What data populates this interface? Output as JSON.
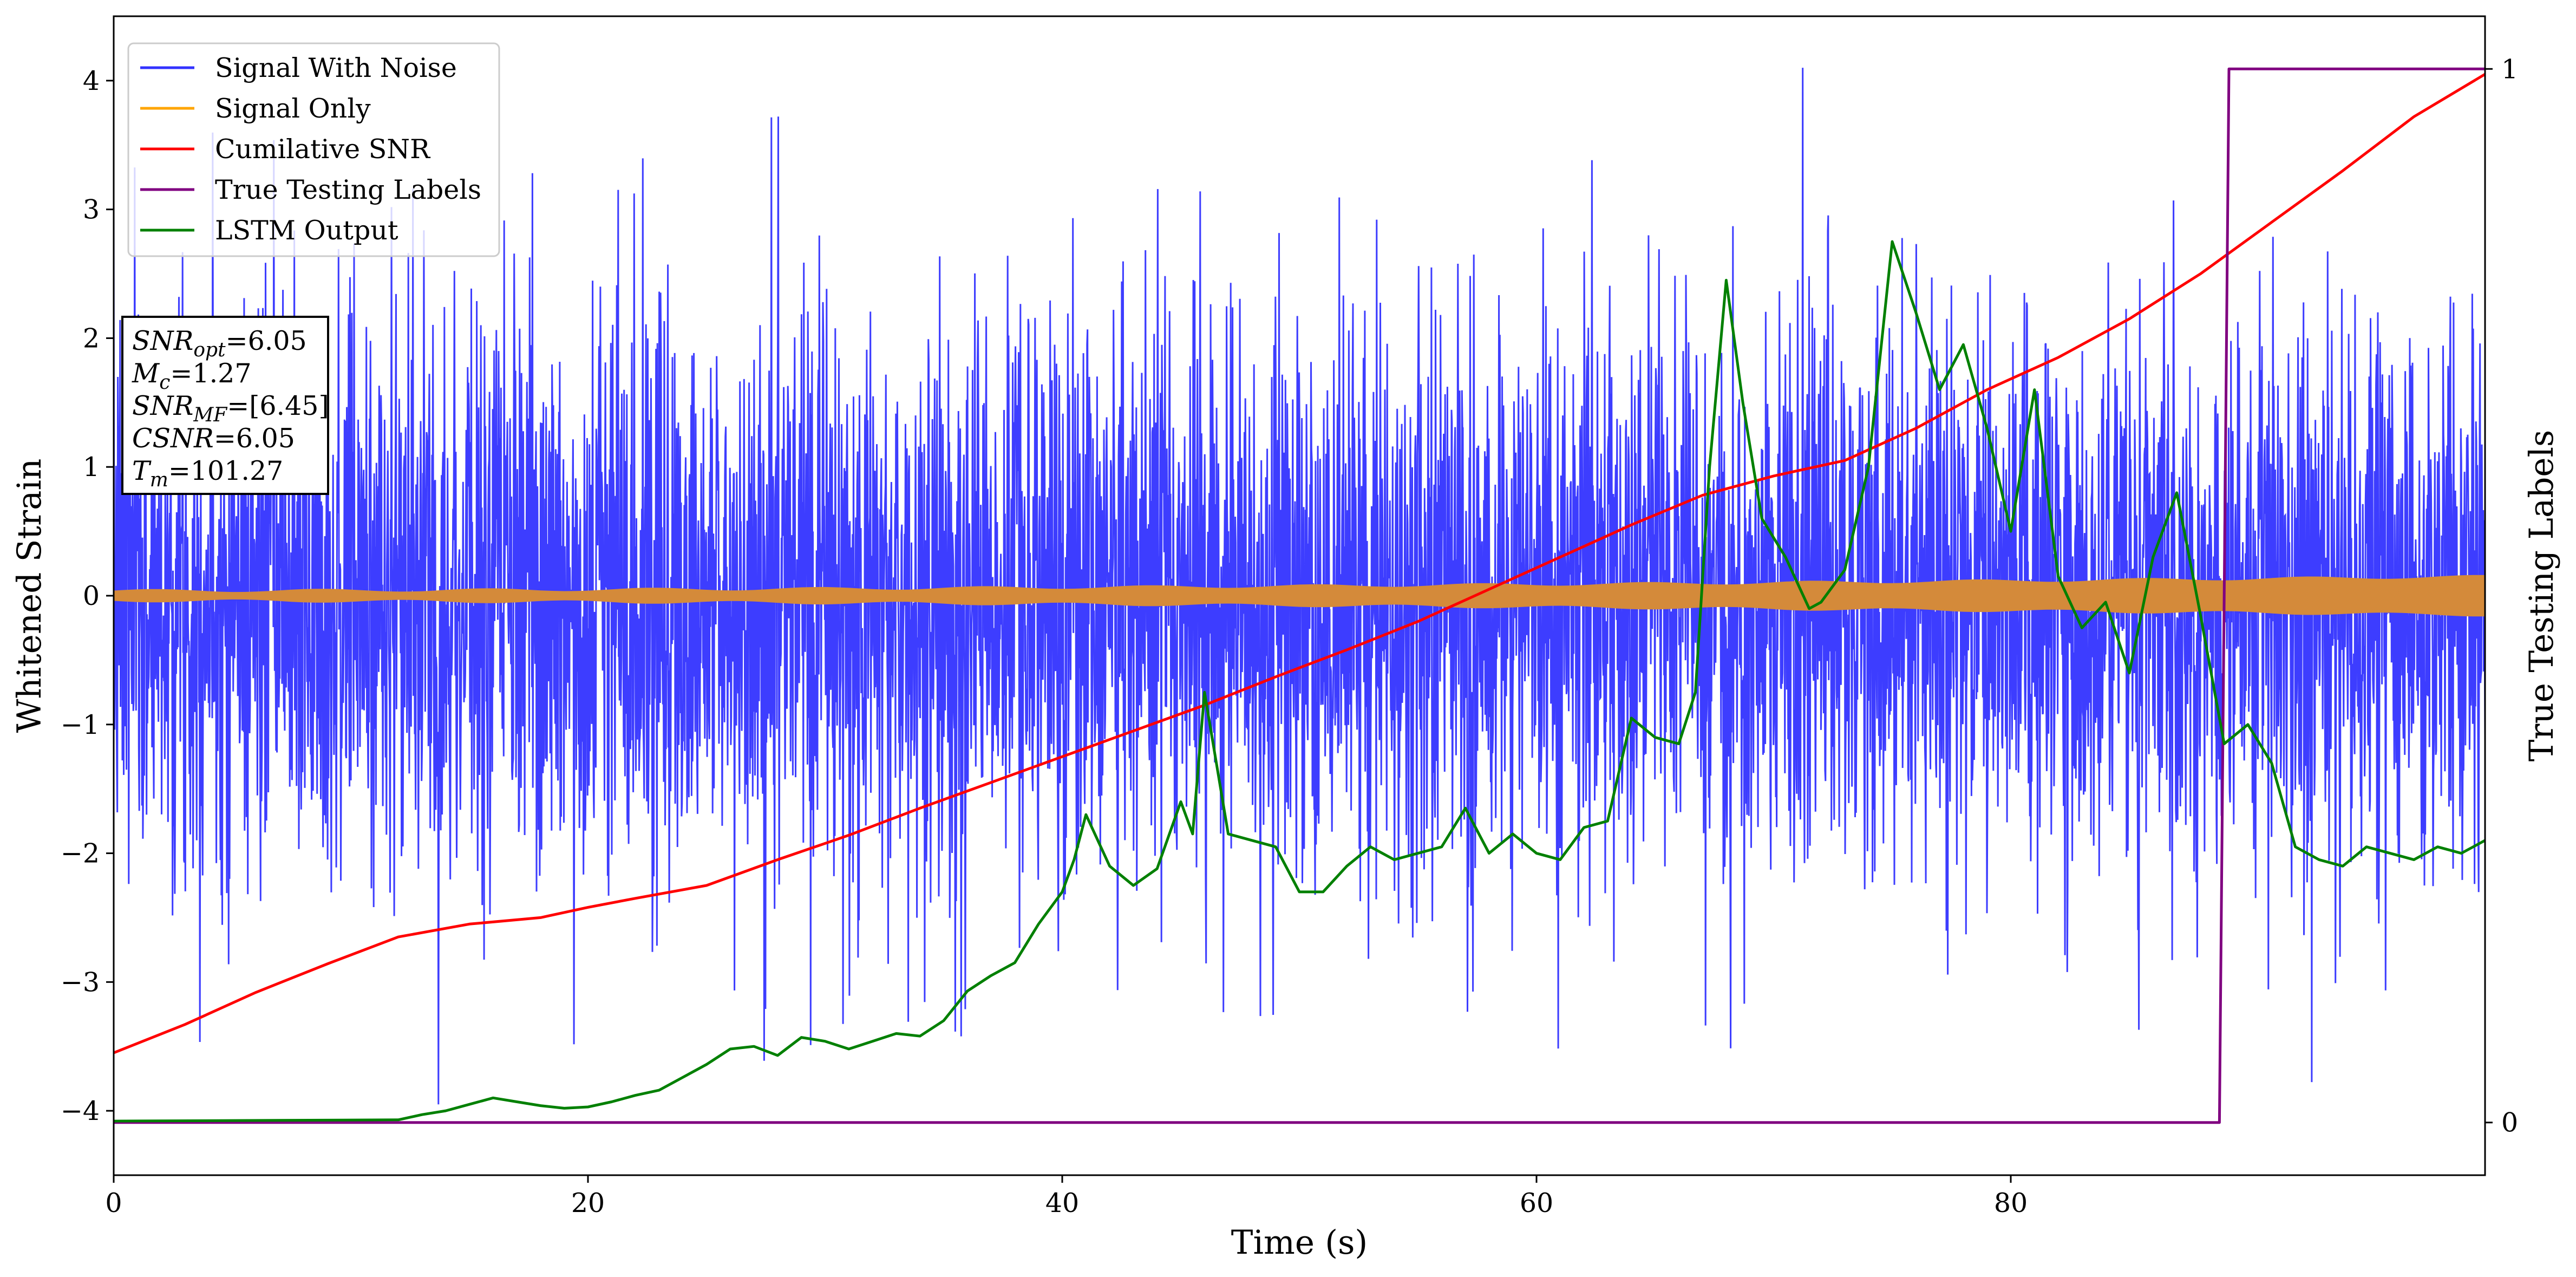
{
  "chart_data": {
    "type": "line",
    "title": "",
    "xlabel": "Time (s)",
    "ylabel": "Whitened Strain",
    "ylabel_right": "True Testing Labels",
    "xlim": [
      0,
      100
    ],
    "ylim": [
      -4.5,
      4.5
    ],
    "ylim_right": [
      -0.05,
      1.05
    ],
    "xticks": [
      0,
      20,
      40,
      60,
      80
    ],
    "yticks": [
      -4,
      -3,
      -2,
      -1,
      0,
      1,
      2,
      3,
      4
    ],
    "yticks_right": [
      0,
      1
    ],
    "grid": false,
    "legend_position": "upper-left",
    "series": [
      {
        "name": "Signal With Noise",
        "color": "#3333ff",
        "axis": "left",
        "kind": "noise",
        "sigma": 1.1,
        "samples": 5200,
        "seed": 7
      },
      {
        "name": "Signal Only",
        "color": "#ffa500",
        "axis": "left",
        "kind": "chirp",
        "amp_start": 0.04,
        "amp_end": 0.15
      },
      {
        "name": "Cumilative SNR",
        "color": "#ff0000",
        "axis": "left",
        "x": [
          0,
          3,
          6,
          9,
          12,
          15,
          18,
          20,
          22,
          25,
          28,
          31,
          34,
          37,
          40,
          43,
          46,
          49,
          52,
          55,
          58,
          61,
          64,
          67,
          70,
          73,
          76,
          79,
          82,
          85,
          88,
          91,
          94,
          97,
          100
        ],
        "y": [
          -3.55,
          -3.33,
          -3.08,
          -2.86,
          -2.65,
          -2.55,
          -2.5,
          -2.42,
          -2.35,
          -2.25,
          -2.05,
          -1.86,
          -1.65,
          -1.45,
          -1.25,
          -1.05,
          -0.85,
          -0.63,
          -0.42,
          -0.2,
          0.05,
          0.3,
          0.55,
          0.78,
          0.93,
          1.05,
          1.3,
          1.6,
          1.85,
          2.15,
          2.5,
          2.9,
          3.3,
          3.72,
          4.05
        ]
      },
      {
        "name": "True Testing Labels",
        "color": "#800080",
        "axis": "right",
        "x": [
          0,
          88.8,
          89.2,
          100
        ],
        "y": [
          0,
          0,
          1,
          1
        ]
      },
      {
        "name": "LSTM Output",
        "color": "#008000",
        "axis": "left",
        "x": [
          0,
          12,
          13,
          14,
          15,
          16,
          17,
          18,
          19,
          20,
          21,
          22,
          23,
          24,
          25,
          26,
          27,
          28,
          29,
          30,
          31,
          32,
          33,
          34,
          35,
          36,
          37,
          38,
          39,
          40,
          40.5,
          41,
          42,
          43,
          44,
          45,
          45.5,
          46,
          47,
          48,
          49,
          50,
          51,
          52,
          53,
          54,
          55,
          56,
          57,
          58,
          59,
          60,
          61,
          62,
          63,
          64,
          65,
          66,
          66.7,
          67.3,
          68,
          68.7,
          69.5,
          70.5,
          71.5,
          72,
          73,
          74,
          75,
          76,
          77,
          78,
          79,
          80,
          81,
          82,
          83,
          84,
          85,
          86,
          87,
          88,
          89,
          90,
          91,
          92,
          93,
          94,
          95,
          96,
          97,
          98,
          99,
          100
        ],
        "y": [
          -4.08,
          -4.07,
          -4.03,
          -4.0,
          -3.95,
          -3.9,
          -3.93,
          -3.96,
          -3.98,
          -3.97,
          -3.93,
          -3.88,
          -3.84,
          -3.74,
          -3.64,
          -3.52,
          -3.5,
          -3.57,
          -3.43,
          -3.46,
          -3.52,
          -3.46,
          -3.4,
          -3.42,
          -3.3,
          -3.07,
          -2.95,
          -2.85,
          -2.55,
          -2.3,
          -2.05,
          -1.7,
          -2.1,
          -2.25,
          -2.12,
          -1.6,
          -1.85,
          -0.75,
          -1.85,
          -1.9,
          -1.95,
          -2.3,
          -2.3,
          -2.1,
          -1.95,
          -2.05,
          -2.0,
          -1.95,
          -1.65,
          -2.0,
          -1.85,
          -2.0,
          -2.05,
          -1.8,
          -1.75,
          -0.95,
          -1.1,
          -1.15,
          -0.75,
          1.0,
          2.45,
          1.5,
          0.6,
          0.3,
          -0.1,
          -0.05,
          0.2,
          1.0,
          2.75,
          2.2,
          1.6,
          1.95,
          1.3,
          0.5,
          1.6,
          0.15,
          -0.25,
          -0.05,
          -0.6,
          0.3,
          0.8,
          -0.15,
          -1.15,
          -1.0,
          -1.3,
          -1.95,
          -2.05,
          -2.1,
          -1.95,
          -2.0,
          -2.05,
          -1.95,
          -2.0,
          -1.9
        ]
      }
    ],
    "annotation": {
      "lines": [
        {
          "base": "SNR",
          "sub": "opt",
          "value": "=6.05"
        },
        {
          "base": "M",
          "sub": "c",
          "value": "=1.27"
        },
        {
          "base": "SNR",
          "sub": "MF",
          "value": "=[6.45]"
        },
        {
          "base": "CSNR",
          "sub": "",
          "value": "=6.05"
        },
        {
          "base": "T",
          "sub": "m",
          "value": "=101.27"
        }
      ]
    }
  }
}
